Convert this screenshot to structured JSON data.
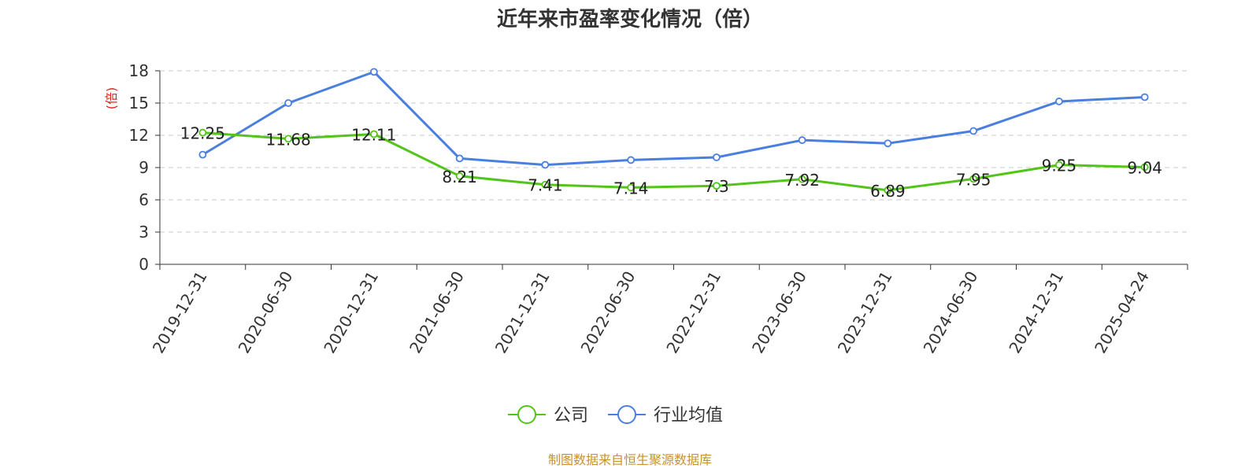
{
  "chart_data": {
    "type": "line",
    "title": "近年来市盈率变化情况（倍）",
    "ylabel": "(倍)",
    "xlabel": "",
    "categories": [
      "2019-12-31",
      "2020-06-30",
      "2020-12-31",
      "2021-06-30",
      "2021-12-31",
      "2022-06-30",
      "2022-12-31",
      "2023-06-30",
      "2023-12-31",
      "2024-06-30",
      "2024-12-31",
      "2025-04-24"
    ],
    "yticks": [
      "0",
      "3",
      "6",
      "9",
      "12",
      "15",
      "18"
    ],
    "ylim": [
      0,
      18
    ],
    "grid": true,
    "legend_position": "bottom",
    "series": [
      {
        "name": "公司",
        "color": "#52c41a",
        "values": [
          12.25,
          11.68,
          12.11,
          8.21,
          7.41,
          7.14,
          7.3,
          7.92,
          6.89,
          7.95,
          9.25,
          9.04
        ],
        "labels": [
          "12.25",
          "11.68",
          "12.11",
          "8.21",
          "7.41",
          "7.14",
          "7.3",
          "7.92",
          "6.89",
          "7.95",
          "9.25",
          "9.04"
        ]
      },
      {
        "name": "行业均值",
        "color": "#4a7fe0",
        "values": [
          10.2,
          15.0,
          17.9,
          9.85,
          9.25,
          9.7,
          9.95,
          11.55,
          11.25,
          12.4,
          15.15,
          15.55
        ]
      }
    ]
  },
  "footer": {
    "source": "制图数据来自恒生聚源数据库"
  }
}
